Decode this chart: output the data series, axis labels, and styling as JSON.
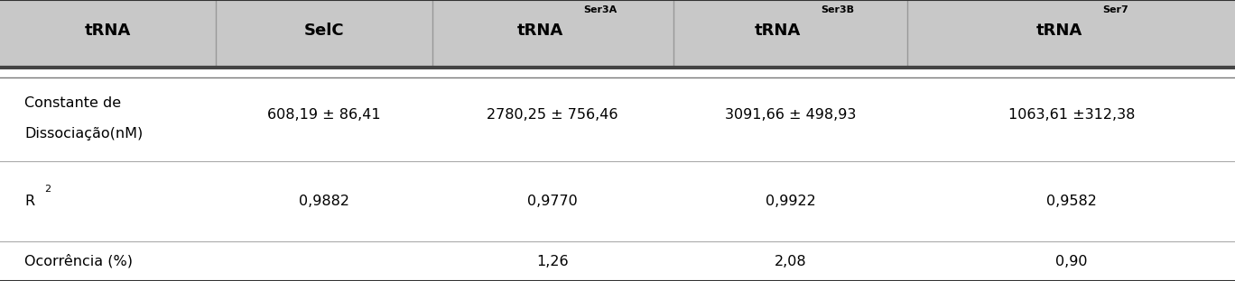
{
  "header_bg": "#c8c8c8",
  "header_text_color": "#000000",
  "body_bg": "#ffffff",
  "body_text_color": "#000000",
  "figsize": [
    13.68,
    3.12
  ],
  "dpi": 100,
  "col_labels": [
    "tRNA",
    "SelC",
    "tRNA",
    "tRNA",
    "tRNA"
  ],
  "col_superscripts": [
    "",
    "",
    "Ser3A",
    "Ser3B",
    "Ser7"
  ],
  "row_labels_raw": [
    "Constante de\nDissociação(nM)",
    "R2",
    "Ocorrência (%)"
  ],
  "row_values": [
    [
      "608,19 ± 86,41",
      "2780,25 ± 756,46",
      "3091,66 ± 498,93",
      "1063,61 ±312,38"
    ],
    [
      "0,9882",
      "0,9770",
      "0,9922",
      "0,9582"
    ],
    [
      "",
      "1,26",
      "2,08",
      "0,90"
    ]
  ],
  "header_line_color": "#555555",
  "sep_line_color": "#aaaaaa",
  "border_line_color": "#333333",
  "header_fs": 13,
  "body_fs": 11.5,
  "super_fs": 8
}
